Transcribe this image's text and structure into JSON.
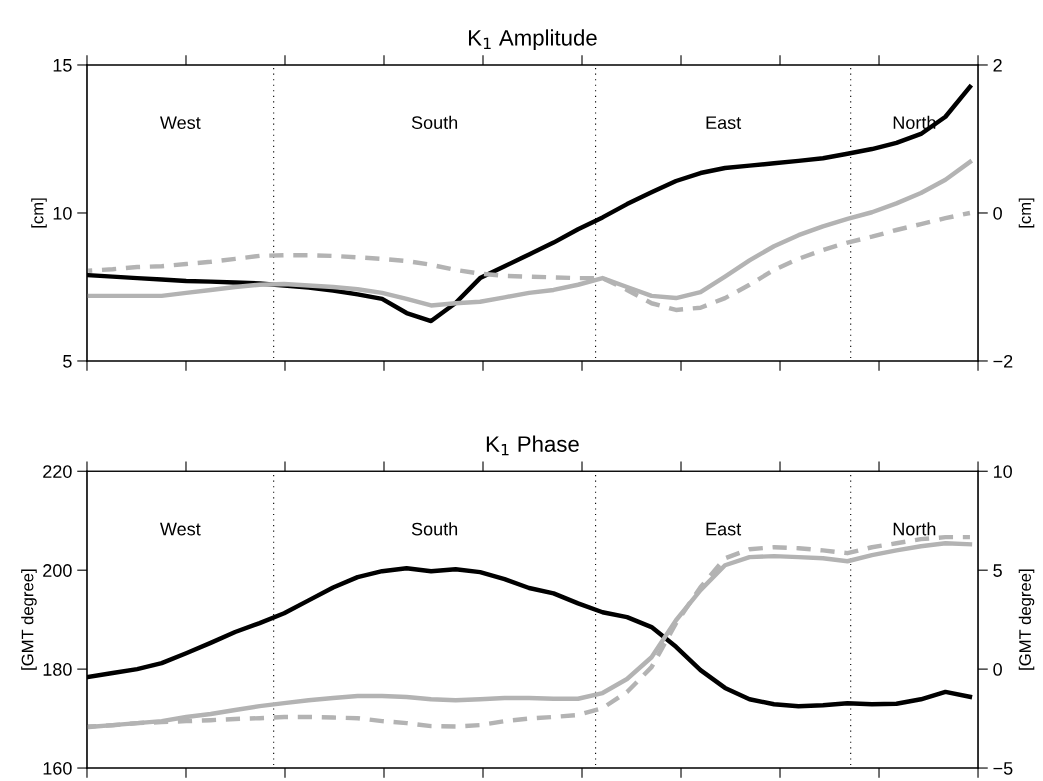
{
  "chart_data": [
    {
      "type": "line",
      "title": "K$_{1}$ Amplitude",
      "ylabel": "[cm]",
      "y2label": "[cm]",
      "categories": [
        null,
        null,
        null,
        null,
        null,
        null,
        null,
        null,
        null,
        null,
        null,
        null,
        null,
        null,
        null,
        null,
        null,
        null,
        null,
        null,
        null,
        null,
        null,
        null,
        null,
        null,
        null,
        null,
        null,
        null,
        null,
        null,
        null,
        null,
        null,
        null,
        null
      ],
      "series": [
        {
          "color": "#000000",
          "line_style": "solid",
          "values": [
            7.9,
            7.85,
            7.8,
            7.75,
            7.7,
            7.68,
            7.65,
            7.62,
            7.55,
            7.48,
            7.38,
            7.25,
            7.1,
            6.62,
            6.35,
            6.96,
            7.8,
            8.2,
            8.6,
            9.0,
            9.45,
            9.85,
            10.3,
            10.7,
            11.08,
            11.35,
            11.52,
            11.6,
            11.68,
            11.76,
            11.85,
            12.0,
            12.16,
            12.37,
            12.67,
            13.25,
            14.26
          ]
        },
        {
          "color": "#b3b3b3",
          "line_style": "solid",
          "axis": "y2",
          "values": [
            -1.12,
            -1.12,
            -1.12,
            -1.12,
            -1.08,
            -1.04,
            -1.0,
            -0.97,
            -0.96,
            -0.98,
            -1.0,
            -1.03,
            -1.08,
            -1.16,
            -1.25,
            -1.22,
            -1.2,
            -1.14,
            -1.08,
            -1.04,
            -0.97,
            -0.88,
            -1.0,
            -1.12,
            -1.15,
            -1.07,
            -0.86,
            -0.64,
            -0.45,
            -0.3,
            -0.18,
            -0.08,
            0.01,
            0.13,
            0.27,
            0.45,
            0.69
          ]
        },
        {
          "color": "#b3b3b3",
          "line_style": "dashed",
          "axis": "y2",
          "values": [
            -0.78,
            -0.76,
            -0.73,
            -0.72,
            -0.69,
            -0.66,
            -0.62,
            -0.58,
            -0.57,
            -0.57,
            -0.58,
            -0.6,
            -0.62,
            -0.65,
            -0.7,
            -0.77,
            -0.82,
            -0.85,
            -0.86,
            -0.87,
            -0.88,
            -0.88,
            -1.04,
            -1.22,
            -1.31,
            -1.28,
            -1.15,
            -0.97,
            -0.77,
            -0.62,
            -0.5,
            -0.4,
            -0.32,
            -0.23,
            -0.15,
            -0.07,
            0.0
          ]
        }
      ],
      "ylim": [
        5,
        15
      ],
      "yticks": [
        5,
        10,
        15
      ],
      "y2lim": [
        -2,
        2
      ],
      "y2ticks": [
        {
          "value": -2,
          "label": "−2"
        },
        0,
        2
      ],
      "annotations": [
        "West",
        "South",
        "East",
        "North"
      ],
      "grid": false,
      "legend": false
    },
    {
      "type": "line",
      "title": "K$_{1}$ Phase",
      "ylabel": "[GMT degree]",
      "y2label": "[GMT degree]",
      "categories": [
        null,
        null,
        null,
        null,
        null,
        null,
        null,
        null,
        null,
        null,
        null,
        null,
        null,
        null,
        null,
        null,
        null,
        null,
        null,
        null,
        null,
        null,
        null,
        null,
        null,
        null,
        null,
        null,
        null,
        null,
        null,
        null,
        null,
        null,
        null,
        null,
        null
      ],
      "series": [
        {
          "color": "#000000",
          "line_style": "solid",
          "values": [
            178.4,
            179.2,
            180.0,
            181.2,
            183.2,
            185.3,
            187.5,
            189.3,
            191.3,
            193.9,
            196.5,
            198.6,
            199.8,
            200.4,
            199.8,
            200.2,
            199.6,
            198.2,
            196.4,
            195.3,
            193.3,
            191.5,
            190.5,
            188.5,
            184.5,
            179.8,
            176.2,
            173.9,
            172.9,
            172.5,
            172.7,
            173.1,
            172.9,
            173.0,
            173.9,
            175.4,
            174.4
          ]
        },
        {
          "color": "#b3b3b3",
          "line_style": "solid",
          "axis": "y2",
          "values": [
            -2.93,
            -2.83,
            -2.73,
            -2.63,
            -2.42,
            -2.27,
            -2.07,
            -1.87,
            -1.72,
            -1.57,
            -1.46,
            -1.36,
            -1.36,
            -1.41,
            -1.52,
            -1.57,
            -1.52,
            -1.46,
            -1.46,
            -1.5,
            -1.5,
            -1.21,
            -0.5,
            0.6,
            2.47,
            3.99,
            5.25,
            5.66,
            5.71,
            5.66,
            5.6,
            5.45,
            5.76,
            6.0,
            6.21,
            6.36,
            6.31
          ]
        },
        {
          "color": "#b3b3b3",
          "line_style": "dashed",
          "axis": "y2",
          "values": [
            -2.9,
            -2.84,
            -2.73,
            -2.68,
            -2.63,
            -2.58,
            -2.52,
            -2.48,
            -2.42,
            -2.42,
            -2.45,
            -2.48,
            -2.63,
            -2.73,
            -2.88,
            -2.9,
            -2.83,
            -2.63,
            -2.5,
            -2.42,
            -2.32,
            -1.97,
            -1.16,
            0.1,
            2.32,
            4.14,
            5.6,
            6.06,
            6.16,
            6.11,
            6.0,
            5.86,
            6.16,
            6.36,
            6.57,
            6.67,
            6.67
          ]
        }
      ],
      "ylim": [
        160,
        220
      ],
      "yticks": [
        160,
        180,
        200,
        220
      ],
      "y2lim": [
        -5,
        10
      ],
      "y2ticks": [
        {
          "value": -5,
          "label": "−5"
        },
        0,
        5,
        10
      ],
      "annotations": [
        "West",
        "South",
        "East",
        "North"
      ],
      "grid": false,
      "legend": false
    }
  ]
}
